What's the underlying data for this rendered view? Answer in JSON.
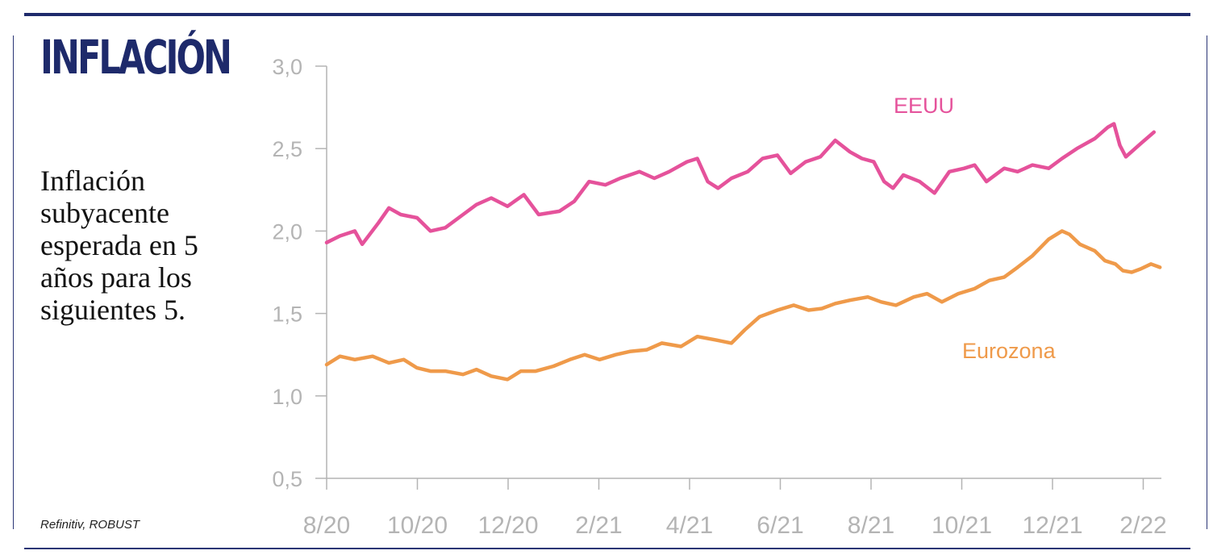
{
  "header": {
    "title": "INFLACIÓN",
    "subtitle": "Inflación subyacente esperada en 5 años para los siguientes 5."
  },
  "footer": {
    "source": "Refinitiv, ROBUST"
  },
  "colors": {
    "frame": "#1e2a6b",
    "axis": "#b4b4b4",
    "eeuu": "#e5529b",
    "eurozona": "#ef9a4a"
  },
  "chart_data": {
    "type": "line",
    "title": "",
    "xlabel": "",
    "ylabel": "",
    "x_tick_labels": [
      "8/20",
      "10/20",
      "12/20",
      "2/21",
      "4/21",
      "6/21",
      "8/21",
      "10/21",
      "12/21",
      "2/22"
    ],
    "y_ticks": [
      0.5,
      1.0,
      1.5,
      2.0,
      2.5,
      3.0
    ],
    "y_tick_labels": [
      "0,5",
      "1,0",
      "1,5",
      "2,0",
      "2,5",
      "3,0"
    ],
    "ylim": [
      0.5,
      3.0
    ],
    "xlim": [
      "2020-08-01",
      "2022-02-15"
    ],
    "grid": false,
    "legend": "labels placed beside lines",
    "series": [
      {
        "name": "EEUU",
        "color": "#e5529b",
        "points": [
          [
            "2020-08-01",
            1.93
          ],
          [
            "2020-08-10",
            1.97
          ],
          [
            "2020-08-20",
            2.0
          ],
          [
            "2020-08-25",
            1.92
          ],
          [
            "2020-09-05",
            2.05
          ],
          [
            "2020-09-12",
            2.14
          ],
          [
            "2020-09-20",
            2.1
          ],
          [
            "2020-10-01",
            2.08
          ],
          [
            "2020-10-10",
            2.0
          ],
          [
            "2020-10-20",
            2.02
          ],
          [
            "2020-11-01",
            2.1
          ],
          [
            "2020-11-10",
            2.16
          ],
          [
            "2020-11-20",
            2.2
          ],
          [
            "2020-12-01",
            2.15
          ],
          [
            "2020-12-12",
            2.22
          ],
          [
            "2020-12-22",
            2.1
          ],
          [
            "2021-01-05",
            2.12
          ],
          [
            "2021-01-15",
            2.18
          ],
          [
            "2021-01-25",
            2.3
          ],
          [
            "2021-02-05",
            2.28
          ],
          [
            "2021-02-15",
            2.32
          ],
          [
            "2021-02-28",
            2.36
          ],
          [
            "2021-03-10",
            2.32
          ],
          [
            "2021-03-20",
            2.36
          ],
          [
            "2021-04-01",
            2.42
          ],
          [
            "2021-04-08",
            2.44
          ],
          [
            "2021-04-15",
            2.3
          ],
          [
            "2021-04-22",
            2.26
          ],
          [
            "2021-05-01",
            2.32
          ],
          [
            "2021-05-12",
            2.36
          ],
          [
            "2021-05-22",
            2.44
          ],
          [
            "2021-06-01",
            2.46
          ],
          [
            "2021-06-10",
            2.35
          ],
          [
            "2021-06-20",
            2.42
          ],
          [
            "2021-06-30",
            2.45
          ],
          [
            "2021-07-10",
            2.55
          ],
          [
            "2021-07-20",
            2.48
          ],
          [
            "2021-07-28",
            2.44
          ],
          [
            "2021-08-05",
            2.42
          ],
          [
            "2021-08-12",
            2.3
          ],
          [
            "2021-08-18",
            2.26
          ],
          [
            "2021-08-25",
            2.34
          ],
          [
            "2021-09-05",
            2.3
          ],
          [
            "2021-09-15",
            2.23
          ],
          [
            "2021-09-25",
            2.36
          ],
          [
            "2021-10-05",
            2.38
          ],
          [
            "2021-10-12",
            2.4
          ],
          [
            "2021-10-20",
            2.3
          ],
          [
            "2021-11-01",
            2.38
          ],
          [
            "2021-11-10",
            2.36
          ],
          [
            "2021-11-20",
            2.4
          ],
          [
            "2021-12-01",
            2.38
          ],
          [
            "2021-12-10",
            2.44
          ],
          [
            "2021-12-20",
            2.5
          ],
          [
            "2022-01-01",
            2.56
          ],
          [
            "2022-01-10",
            2.63
          ],
          [
            "2022-01-14",
            2.65
          ],
          [
            "2022-01-18",
            2.52
          ],
          [
            "2022-01-22",
            2.45
          ],
          [
            "2022-02-01",
            2.53
          ],
          [
            "2022-02-10",
            2.6
          ]
        ]
      },
      {
        "name": "Eurozona",
        "color": "#ef9a4a",
        "points": [
          [
            "2020-08-01",
            1.19
          ],
          [
            "2020-08-10",
            1.24
          ],
          [
            "2020-08-20",
            1.22
          ],
          [
            "2020-09-01",
            1.24
          ],
          [
            "2020-09-12",
            1.2
          ],
          [
            "2020-09-22",
            1.22
          ],
          [
            "2020-10-01",
            1.17
          ],
          [
            "2020-10-10",
            1.15
          ],
          [
            "2020-10-20",
            1.15
          ],
          [
            "2020-11-01",
            1.13
          ],
          [
            "2020-11-10",
            1.16
          ],
          [
            "2020-11-20",
            1.12
          ],
          [
            "2020-12-01",
            1.1
          ],
          [
            "2020-12-10",
            1.15
          ],
          [
            "2020-12-20",
            1.15
          ],
          [
            "2021-01-01",
            1.18
          ],
          [
            "2021-01-12",
            1.22
          ],
          [
            "2021-01-22",
            1.25
          ],
          [
            "2021-02-01",
            1.22
          ],
          [
            "2021-02-12",
            1.25
          ],
          [
            "2021-02-22",
            1.27
          ],
          [
            "2021-03-05",
            1.28
          ],
          [
            "2021-03-15",
            1.32
          ],
          [
            "2021-03-28",
            1.3
          ],
          [
            "2021-04-08",
            1.36
          ],
          [
            "2021-04-20",
            1.34
          ],
          [
            "2021-05-01",
            1.32
          ],
          [
            "2021-05-10",
            1.4
          ],
          [
            "2021-05-20",
            1.48
          ],
          [
            "2021-06-01",
            1.52
          ],
          [
            "2021-06-12",
            1.55
          ],
          [
            "2021-06-22",
            1.52
          ],
          [
            "2021-07-01",
            1.53
          ],
          [
            "2021-07-10",
            1.56
          ],
          [
            "2021-07-20",
            1.58
          ],
          [
            "2021-08-01",
            1.6
          ],
          [
            "2021-08-10",
            1.57
          ],
          [
            "2021-08-20",
            1.55
          ],
          [
            "2021-09-01",
            1.6
          ],
          [
            "2021-09-10",
            1.62
          ],
          [
            "2021-09-20",
            1.57
          ],
          [
            "2021-10-01",
            1.62
          ],
          [
            "2021-10-12",
            1.65
          ],
          [
            "2021-10-22",
            1.7
          ],
          [
            "2021-11-01",
            1.72
          ],
          [
            "2021-11-10",
            1.78
          ],
          [
            "2021-11-20",
            1.85
          ],
          [
            "2021-12-01",
            1.95
          ],
          [
            "2021-12-10",
            2.0
          ],
          [
            "2021-12-15",
            1.98
          ],
          [
            "2021-12-22",
            1.92
          ],
          [
            "2022-01-01",
            1.88
          ],
          [
            "2022-01-08",
            1.82
          ],
          [
            "2022-01-15",
            1.8
          ],
          [
            "2022-01-20",
            1.76
          ],
          [
            "2022-01-26",
            1.75
          ],
          [
            "2022-02-01",
            1.77
          ],
          [
            "2022-02-08",
            1.8
          ],
          [
            "2022-02-14",
            1.78
          ]
        ]
      }
    ]
  }
}
